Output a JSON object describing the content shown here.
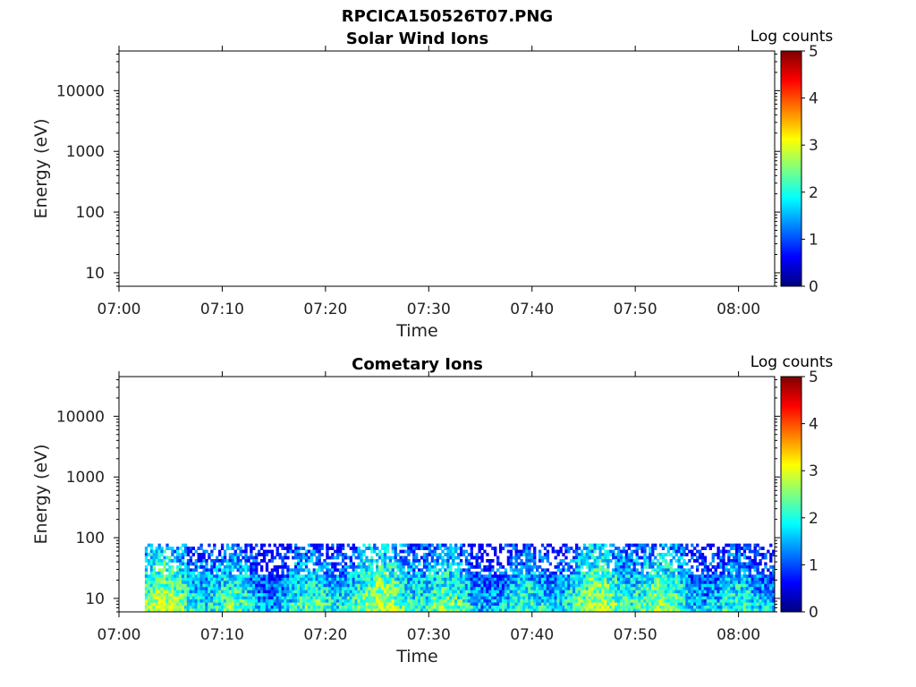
{
  "figure_title": "RPCICA150526T07.PNG",
  "colors": {
    "axis": "#000000",
    "background": "#ffffff",
    "colormap": [
      "#00007f",
      "#0000ff",
      "#007fff",
      "#00ffff",
      "#7fff7f",
      "#ffff00",
      "#ff7f00",
      "#ff0000",
      "#7f0000"
    ]
  },
  "chart_data": [
    {
      "type": "heatmap",
      "title": "Solar Wind Ions",
      "xlabel": "Time",
      "ylabel": "Energy (eV)",
      "x_ticks": [
        "07:00",
        "07:10",
        "07:20",
        "07:30",
        "07:40",
        "07:50",
        "08:00"
      ],
      "x_range_minutes": [
        0,
        63.5
      ],
      "y_scale": "log",
      "y_ticks": [
        "10",
        "100",
        "1000",
        "10000"
      ],
      "y_range": [
        6,
        45000
      ],
      "colorbar": {
        "label": "Log counts",
        "ticks": [
          "0",
          "1",
          "2",
          "3",
          "4",
          "5"
        ],
        "range": [
          0,
          5
        ],
        "colormap": "jet"
      },
      "data_note": "empty",
      "data_energy_max": null,
      "data_start_minutes": null
    },
    {
      "type": "heatmap",
      "title": "Cometary Ions",
      "xlabel": "Time",
      "ylabel": "Energy (eV)",
      "x_ticks": [
        "07:00",
        "07:10",
        "07:20",
        "07:30",
        "07:40",
        "07:50",
        "08:00"
      ],
      "x_range_minutes": [
        0,
        63.5
      ],
      "y_scale": "log",
      "y_ticks": [
        "10",
        "100",
        "1000",
        "10000"
      ],
      "y_range": [
        6,
        45000
      ],
      "colorbar": {
        "label": "Log counts",
        "ticks": [
          "0",
          "1",
          "2",
          "3",
          "4",
          "5"
        ],
        "range": [
          0,
          5
        ],
        "colormap": "jet"
      },
      "data_note": "counts between 1 and 3 (log) in the 6–80 eV energy range, from about 07:02 to end of interval",
      "data_energy_max": 80,
      "data_start_minutes": 2.5
    }
  ]
}
